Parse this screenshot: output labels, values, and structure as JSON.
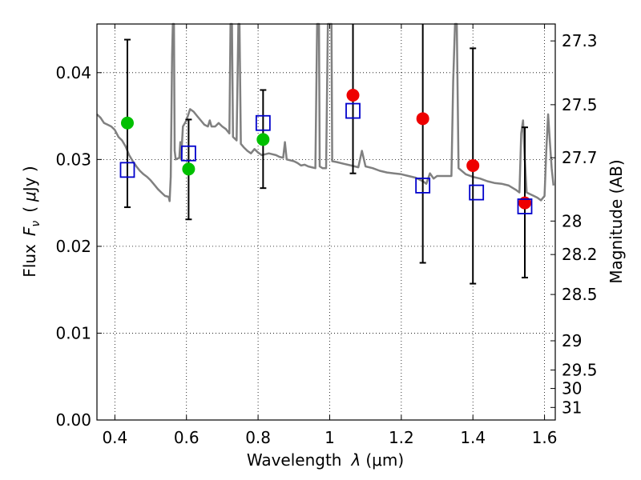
{
  "chart_data": {
    "type": "scatter",
    "xlabel": "Wavelength",
    "xlabel_symbol": "λ",
    "xlabel_unit": "(μm)",
    "ylabel_left": "Flux",
    "ylabel_left_symbol": "F",
    "ylabel_left_sub": "ν",
    "ylabel_left_unit_open": "(",
    "ylabel_left_unit_mu": "μ",
    "ylabel_left_unit_rest": "Jy )",
    "ylabel_right": "Magnitude (AB)",
    "xlim": [
      0.35,
      1.63
    ],
    "ylim": [
      0.0,
      0.0456
    ],
    "grid": true,
    "x_ticks": [
      0.4,
      0.6,
      0.8,
      1.0,
      1.2,
      1.4,
      1.6
    ],
    "x_tick_labels": [
      "0.4",
      "0.6",
      "0.8",
      "1",
      "1.2",
      "1.4",
      "1.6"
    ],
    "y_ticks": [
      0.0,
      0.01,
      0.02,
      0.03,
      0.04
    ],
    "y_tick_labels": [
      "0.00",
      "0.01",
      "0.02",
      "0.03",
      "0.04"
    ],
    "right_axis": {
      "type": "AB magnitude",
      "ticks": [
        27.3,
        27.5,
        27.7,
        28,
        28.2,
        28.5,
        29,
        29.5,
        30,
        31
      ],
      "tick_labels": [
        "27.3",
        "27.5",
        "27.7",
        "28",
        "28.2",
        "28.5",
        "29",
        "29.5",
        "30",
        "31"
      ]
    },
    "series": [
      {
        "marker": "green-circle",
        "color": "#00c000",
        "points": [
          [
            0.435,
            0.0342
          ],
          [
            0.606,
            0.0289
          ],
          [
            0.814,
            0.0323
          ]
        ]
      },
      {
        "marker": "red-circle",
        "color": "#ee0000",
        "points": [
          [
            1.065,
            0.0374
          ],
          [
            1.26,
            0.0347
          ],
          [
            1.4,
            0.0293
          ],
          [
            1.545,
            0.025
          ]
        ]
      },
      {
        "marker": "blue-open-square",
        "color": "#0000cc",
        "points": [
          [
            0.435,
            0.0288
          ],
          [
            0.606,
            0.0307
          ],
          [
            0.814,
            0.0342
          ],
          [
            1.065,
            0.0356
          ],
          [
            1.26,
            0.027
          ],
          [
            1.41,
            0.0262
          ],
          [
            1.545,
            0.0246
          ]
        ]
      }
    ],
    "error_bars": [
      {
        "x": 0.435,
        "low": 0.0245,
        "high": 0.0438
      },
      {
        "x": 0.606,
        "low": 0.0231,
        "high": 0.0346
      },
      {
        "x": 0.814,
        "low": 0.0267,
        "high": 0.038
      },
      {
        "x": 1.065,
        "low": 0.0284,
        "high": 0.0456
      },
      {
        "x": 1.26,
        "low": 0.0181,
        "high": 0.0456
      },
      {
        "x": 1.4,
        "low": 0.0157,
        "high": 0.0428
      },
      {
        "x": 1.545,
        "low": 0.0164,
        "high": 0.0337
      }
    ],
    "model_spectrum": {
      "color": "#808080",
      "points": [
        [
          0.35,
          0.0352
        ],
        [
          0.36,
          0.0348
        ],
        [
          0.37,
          0.0342
        ],
        [
          0.38,
          0.034
        ],
        [
          0.39,
          0.0338
        ],
        [
          0.4,
          0.0334
        ],
        [
          0.41,
          0.0326
        ],
        [
          0.42,
          0.0322
        ],
        [
          0.43,
          0.0315
        ],
        [
          0.44,
          0.0305
        ],
        [
          0.45,
          0.0298
        ],
        [
          0.46,
          0.0292
        ],
        [
          0.47,
          0.0287
        ],
        [
          0.48,
          0.0283
        ],
        [
          0.49,
          0.028
        ],
        [
          0.5,
          0.0276
        ],
        [
          0.51,
          0.0271
        ],
        [
          0.52,
          0.0266
        ],
        [
          0.53,
          0.0262
        ],
        [
          0.54,
          0.0258
        ],
        [
          0.55,
          0.0257
        ],
        [
          0.553,
          0.0252
        ],
        [
          0.556,
          0.028
        ],
        [
          0.56,
          0.042
        ],
        [
          0.562,
          0.0456
        ],
        [
          0.565,
          0.0456
        ],
        [
          0.567,
          0.031
        ],
        [
          0.57,
          0.03
        ],
        [
          0.58,
          0.0302
        ],
        [
          0.583,
          0.032
        ],
        [
          0.585,
          0.03
        ],
        [
          0.59,
          0.0338
        ],
        [
          0.6,
          0.0345
        ],
        [
          0.61,
          0.0358
        ],
        [
          0.62,
          0.0355
        ],
        [
          0.63,
          0.035
        ],
        [
          0.64,
          0.0345
        ],
        [
          0.65,
          0.034
        ],
        [
          0.66,
          0.0338
        ],
        [
          0.665,
          0.0345
        ],
        [
          0.67,
          0.0338
        ],
        [
          0.68,
          0.0338
        ],
        [
          0.69,
          0.0342
        ],
        [
          0.7,
          0.0338
        ],
        [
          0.71,
          0.0335
        ],
        [
          0.72,
          0.033
        ],
        [
          0.723,
          0.0456
        ],
        [
          0.727,
          0.0456
        ],
        [
          0.73,
          0.0326
        ],
        [
          0.74,
          0.0322
        ],
        [
          0.745,
          0.0456
        ],
        [
          0.748,
          0.0456
        ],
        [
          0.752,
          0.0318
        ],
        [
          0.76,
          0.0314
        ],
        [
          0.77,
          0.031
        ],
        [
          0.78,
          0.0307
        ],
        [
          0.79,
          0.0312
        ],
        [
          0.8,
          0.0308
        ],
        [
          0.81,
          0.0305
        ],
        [
          0.82,
          0.0306
        ],
        [
          0.83,
          0.0307
        ],
        [
          0.84,
          0.0306
        ],
        [
          0.85,
          0.0305
        ],
        [
          0.86,
          0.0303
        ],
        [
          0.87,
          0.0302
        ],
        [
          0.875,
          0.032
        ],
        [
          0.88,
          0.03
        ],
        [
          0.89,
          0.0299
        ],
        [
          0.9,
          0.0298
        ],
        [
          0.91,
          0.0296
        ],
        [
          0.92,
          0.0293
        ],
        [
          0.93,
          0.0294
        ],
        [
          0.94,
          0.0292
        ],
        [
          0.95,
          0.0291
        ],
        [
          0.96,
          0.029
        ],
        [
          0.965,
          0.0456
        ],
        [
          0.97,
          0.0456
        ],
        [
          0.972,
          0.0292
        ],
        [
          0.98,
          0.029
        ],
        [
          0.99,
          0.029
        ],
        [
          0.995,
          0.0456
        ],
        [
          1.005,
          0.0456
        ],
        [
          1.007,
          0.0298
        ],
        [
          1.02,
          0.0297
        ],
        [
          1.04,
          0.0295
        ],
        [
          1.06,
          0.0293
        ],
        [
          1.08,
          0.0291
        ],
        [
          1.09,
          0.031
        ],
        [
          1.1,
          0.0292
        ],
        [
          1.12,
          0.029
        ],
        [
          1.14,
          0.0287
        ],
        [
          1.16,
          0.0285
        ],
        [
          1.18,
          0.0284
        ],
        [
          1.2,
          0.0283
        ],
        [
          1.22,
          0.0281
        ],
        [
          1.24,
          0.0279
        ],
        [
          1.26,
          0.0275
        ],
        [
          1.27,
          0.0272
        ],
        [
          1.28,
          0.0284
        ],
        [
          1.29,
          0.0278
        ],
        [
          1.3,
          0.0281
        ],
        [
          1.32,
          0.0281
        ],
        [
          1.34,
          0.0281
        ],
        [
          1.345,
          0.039
        ],
        [
          1.35,
          0.0456
        ],
        [
          1.355,
          0.0456
        ],
        [
          1.36,
          0.029
        ],
        [
          1.38,
          0.0283
        ],
        [
          1.4,
          0.028
        ],
        [
          1.42,
          0.0278
        ],
        [
          1.44,
          0.0275
        ],
        [
          1.46,
          0.0273
        ],
        [
          1.48,
          0.0272
        ],
        [
          1.5,
          0.027
        ],
        [
          1.52,
          0.0265
        ],
        [
          1.53,
          0.0262
        ],
        [
          1.535,
          0.033
        ],
        [
          1.54,
          0.0345
        ],
        [
          1.545,
          0.03
        ],
        [
          1.55,
          0.0262
        ],
        [
          1.56,
          0.026
        ],
        [
          1.57,
          0.0258
        ],
        [
          1.58,
          0.0256
        ],
        [
          1.59,
          0.0253
        ],
        [
          1.6,
          0.0258
        ],
        [
          1.605,
          0.031
        ],
        [
          1.61,
          0.0352
        ],
        [
          1.615,
          0.032
        ],
        [
          1.62,
          0.029
        ],
        [
          1.625,
          0.027
        ]
      ]
    }
  }
}
